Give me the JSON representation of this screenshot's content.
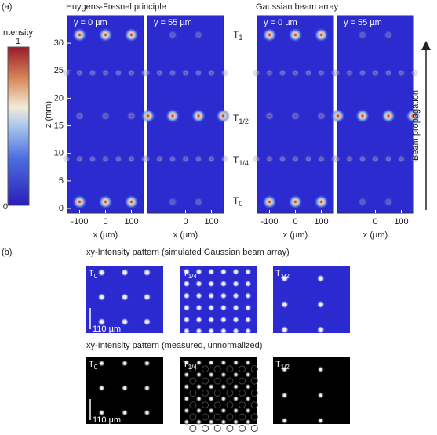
{
  "panel_a": {
    "label": "(a)",
    "colorbar": {
      "title": "Intensity",
      "max": 1,
      "min": 0
    },
    "groups": [
      {
        "title": "Huygens-Fresnel principle",
        "plots": [
          {
            "label": "y = 0 µm"
          },
          {
            "label": "y = 55 µm"
          }
        ]
      },
      {
        "title": "Gaussian beam array",
        "plots": [
          {
            "label": "y = 0 µm"
          },
          {
            "label": "y = 55 µm"
          }
        ]
      }
    ],
    "y_axis": {
      "label": "z (mm)",
      "ticks": [
        0,
        5,
        10,
        15,
        20,
        25,
        30
      ]
    },
    "x_axis": {
      "label": "x (µm)",
      "ticks": [
        -100,
        0,
        100
      ]
    },
    "planes": [
      {
        "base": "T",
        "sub": "1"
      },
      {
        "base": "T",
        "sub": "1/2"
      },
      {
        "base": "T",
        "sub": "1/4"
      },
      {
        "base": "T",
        "sub": "0"
      }
    ],
    "side_label": "Beam propagation"
  },
  "panel_b": {
    "label": "(b)",
    "rows": [
      {
        "title": "xy-Intensity pattern (simulated Gaussian beam array)",
        "images": [
          {
            "base": "T",
            "sub": "0"
          },
          {
            "base": "T",
            "sub": "1/4"
          },
          {
            "base": "T",
            "sub": "1/2"
          }
        ]
      },
      {
        "title": "xy-Intensity pattern (measured, unnormalized)",
        "images": [
          {
            "base": "T",
            "sub": "0"
          },
          {
            "base": "T",
            "sub": "1/4"
          },
          {
            "base": "T",
            "sub": "1/2"
          }
        ]
      }
    ],
    "scale_bar": "110 µm"
  }
}
